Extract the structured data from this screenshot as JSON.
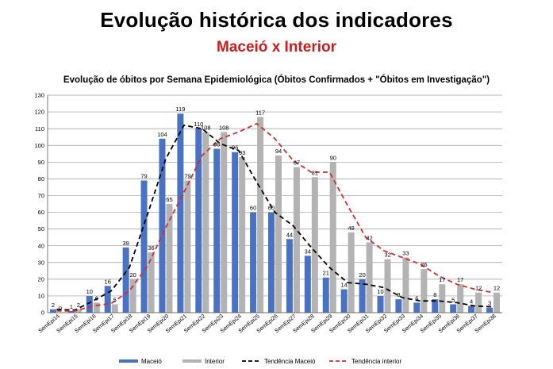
{
  "header": {
    "title": "Evolução histórica dos indicadores",
    "subtitle": "Maceió x Interior"
  },
  "colors": {
    "maceio": "#4a72c2",
    "interior": "#b3b3b3",
    "trend_maceio": "#000000",
    "trend_interior": "#d62b2b",
    "grid": "#9a9a9a"
  },
  "chart_data": {
    "type": "bar",
    "title": "Evolução de óbitos por Semana Epidemiológica (Óbitos Confirmados + \"Óbitos em Investigação\")",
    "categories": [
      "SemEpi14",
      "SemEpi15",
      "SemEpi16",
      "SemEpi17",
      "SemEpi18",
      "SemEpi19",
      "SemEpi20",
      "SemEpi21",
      "SemEpi22",
      "SemEpi23",
      "SemEpi24",
      "SemEpi25",
      "SemEpi26",
      "SemEpi27",
      "SemEpi28",
      "SemEpi29",
      "SemEpi30",
      "SemEpi31",
      "SemEpi32",
      "SemEpi33",
      "SemEpi34",
      "SemEpi35",
      "SemEpi36",
      "SemEpi37",
      "SemEpi38"
    ],
    "series": [
      {
        "name": "Maceió",
        "values": [
          2,
          1,
          10,
          16,
          39,
          79,
          104,
          119,
          110,
          98,
          96,
          60,
          60,
          44,
          34,
          21,
          14,
          20,
          10,
          8,
          6,
          8,
          5,
          4,
          3
        ]
      },
      {
        "name": "Interior",
        "values": [
          0,
          2,
          6,
          5,
          20,
          36,
          65,
          79,
          108,
          108,
          93,
          117,
          94,
          87,
          81,
          90,
          48,
          42,
          32,
          33,
          26,
          17,
          17,
          12,
          12
        ]
      }
    ],
    "trend_series": [
      {
        "name": "Tendência Maceió",
        "values": [
          2,
          1.5,
          7,
          13,
          27,
          59,
          92,
          112,
          110,
          101,
          97,
          78,
          60,
          52,
          39,
          27,
          18,
          17,
          15,
          9,
          7,
          7,
          6,
          4,
          3.5
        ]
      },
      {
        "name": "Tendência interior",
        "values": [
          1,
          1,
          4,
          5.5,
          13,
          28,
          51,
          72,
          94,
          104,
          108,
          113,
          104,
          91,
          84,
          84,
          64,
          45,
          37,
          33,
          29,
          22,
          17,
          14,
          12
        ]
      }
    ],
    "ylim": [
      0,
      130
    ],
    "yticks": [
      0,
      10,
      20,
      30,
      40,
      50,
      60,
      70,
      80,
      90,
      100,
      110,
      120,
      130
    ],
    "grid": true,
    "legend_position": "bottom",
    "legend": [
      "Maceió",
      "Interior",
      "Tendência Maceió",
      "Tendência interior"
    ]
  }
}
